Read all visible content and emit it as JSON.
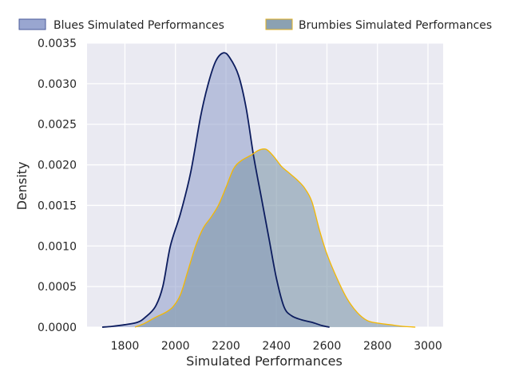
{
  "chart_data": {
    "type": "area",
    "title": "",
    "xlabel": "Simulated Performances",
    "ylabel": "Density",
    "xlim": [
      1650,
      3060
    ],
    "ylim": [
      0,
      0.0035
    ],
    "x_ticks": [
      1800,
      2000,
      2200,
      2400,
      2600,
      2800,
      3000
    ],
    "y_ticks": [
      "0.0000",
      "0.0005",
      "0.0010",
      "0.0015",
      "0.0020",
      "0.0025",
      "0.0030",
      "0.0035"
    ],
    "grid": true,
    "legend_placement": "top",
    "series": [
      {
        "name": "Blues Simulated Performances",
        "line_color": "#0c1c5e",
        "fill_color": "#8e9ccb",
        "points": [
          [
            1710,
            0.0
          ],
          [
            1750,
            1e-05
          ],
          [
            1800,
            3e-05
          ],
          [
            1850,
            6e-05
          ],
          [
            1880,
            0.00012
          ],
          [
            1920,
            0.00025
          ],
          [
            1950,
            0.0005
          ],
          [
            1980,
            0.001
          ],
          [
            2020,
            0.0014
          ],
          [
            2060,
            0.0019
          ],
          [
            2100,
            0.0026
          ],
          [
            2130,
            0.003
          ],
          [
            2160,
            0.00328
          ],
          [
            2190,
            0.00338
          ],
          [
            2215,
            0.00332
          ],
          [
            2250,
            0.0031
          ],
          [
            2280,
            0.0027
          ],
          [
            2310,
            0.0021
          ],
          [
            2340,
            0.0016
          ],
          [
            2370,
            0.0011
          ],
          [
            2400,
            0.0006
          ],
          [
            2430,
            0.00025
          ],
          [
            2460,
            0.00014
          ],
          [
            2500,
            9e-05
          ],
          [
            2540,
            6e-05
          ],
          [
            2580,
            2e-05
          ],
          [
            2610,
            0.0
          ]
        ]
      },
      {
        "name": "Brumbies Simulated Performances",
        "line_color": "#f5b800",
        "fill_color": "#7e97aa",
        "points": [
          [
            1840,
            0.0
          ],
          [
            1880,
            5e-05
          ],
          [
            1920,
            0.00012
          ],
          [
            1960,
            0.00018
          ],
          [
            1990,
            0.00025
          ],
          [
            2020,
            0.0004
          ],
          [
            2050,
            0.0007
          ],
          [
            2080,
            0.001
          ],
          [
            2110,
            0.00122
          ],
          [
            2140,
            0.00135
          ],
          [
            2170,
            0.0015
          ],
          [
            2200,
            0.00172
          ],
          [
            2230,
            0.00195
          ],
          [
            2260,
            0.00205
          ],
          [
            2300,
            0.00212
          ],
          [
            2330,
            0.00218
          ],
          [
            2360,
            0.00219
          ],
          [
            2390,
            0.0021
          ],
          [
            2420,
            0.00198
          ],
          [
            2450,
            0.0019
          ],
          [
            2480,
            0.00182
          ],
          [
            2510,
            0.00172
          ],
          [
            2540,
            0.00155
          ],
          [
            2570,
            0.0012
          ],
          [
            2600,
            0.0009
          ],
          [
            2640,
            0.0006
          ],
          [
            2680,
            0.00035
          ],
          [
            2720,
            0.00018
          ],
          [
            2760,
            8e-05
          ],
          [
            2800,
            5e-05
          ],
          [
            2850,
            3e-05
          ],
          [
            2900,
            1e-05
          ],
          [
            2950,
            0.0
          ]
        ]
      }
    ]
  }
}
